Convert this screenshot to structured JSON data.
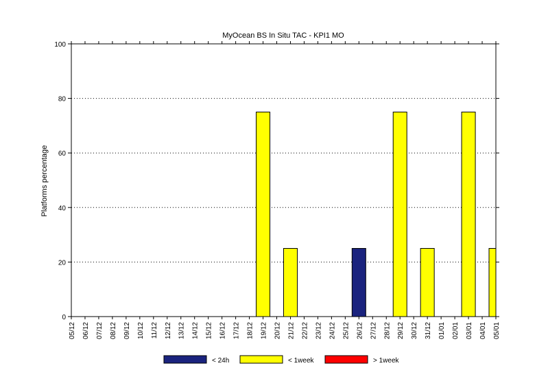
{
  "chart_data": {
    "type": "bar",
    "title": "MyOcean  BS In Situ TAC - KPI1  MO",
    "xlabel": "",
    "ylabel": "Platforms percentage",
    "ylim": [
      0,
      100
    ],
    "yticks": [
      0,
      20,
      40,
      60,
      80,
      100
    ],
    "grid": "horizontal dotted",
    "categories": [
      "05/12",
      "06/12",
      "07/12",
      "08/12",
      "09/12",
      "10/12",
      "11/12",
      "12/12",
      "13/12",
      "14/12",
      "15/12",
      "16/12",
      "17/12",
      "18/12",
      "19/12",
      "20/12",
      "21/12",
      "22/12",
      "23/12",
      "24/12",
      "25/12",
      "26/12",
      "27/12",
      "28/12",
      "29/12",
      "30/12",
      "31/12",
      "01/01",
      "02/01",
      "03/01",
      "04/01",
      "05/01"
    ],
    "series": [
      {
        "name": "< 24h",
        "color": "#1a237e",
        "values": [
          0,
          0,
          0,
          0,
          0,
          0,
          0,
          0,
          0,
          0,
          0,
          0,
          0,
          0,
          0,
          0,
          0,
          0,
          0,
          0,
          0,
          25,
          0,
          0,
          0,
          0,
          0,
          0,
          0,
          0,
          0,
          0
        ]
      },
      {
        "name": "< 1week",
        "color": "#ffff00",
        "values": [
          0,
          0,
          0,
          0,
          0,
          0,
          0,
          0,
          0,
          0,
          0,
          0,
          0,
          0,
          75,
          0,
          25,
          0,
          0,
          0,
          0,
          0,
          0,
          0,
          75,
          0,
          25,
          0,
          0,
          75,
          0,
          25
        ]
      },
      {
        "name": "> 1week",
        "color": "#ff0000",
        "values": [
          0,
          0,
          0,
          0,
          0,
          0,
          0,
          0,
          0,
          0,
          0,
          0,
          0,
          0,
          0,
          0,
          0,
          0,
          0,
          0,
          0,
          0,
          0,
          0,
          0,
          0,
          0,
          0,
          0,
          0,
          0,
          0
        ]
      }
    ],
    "legend_position": "bottom"
  }
}
